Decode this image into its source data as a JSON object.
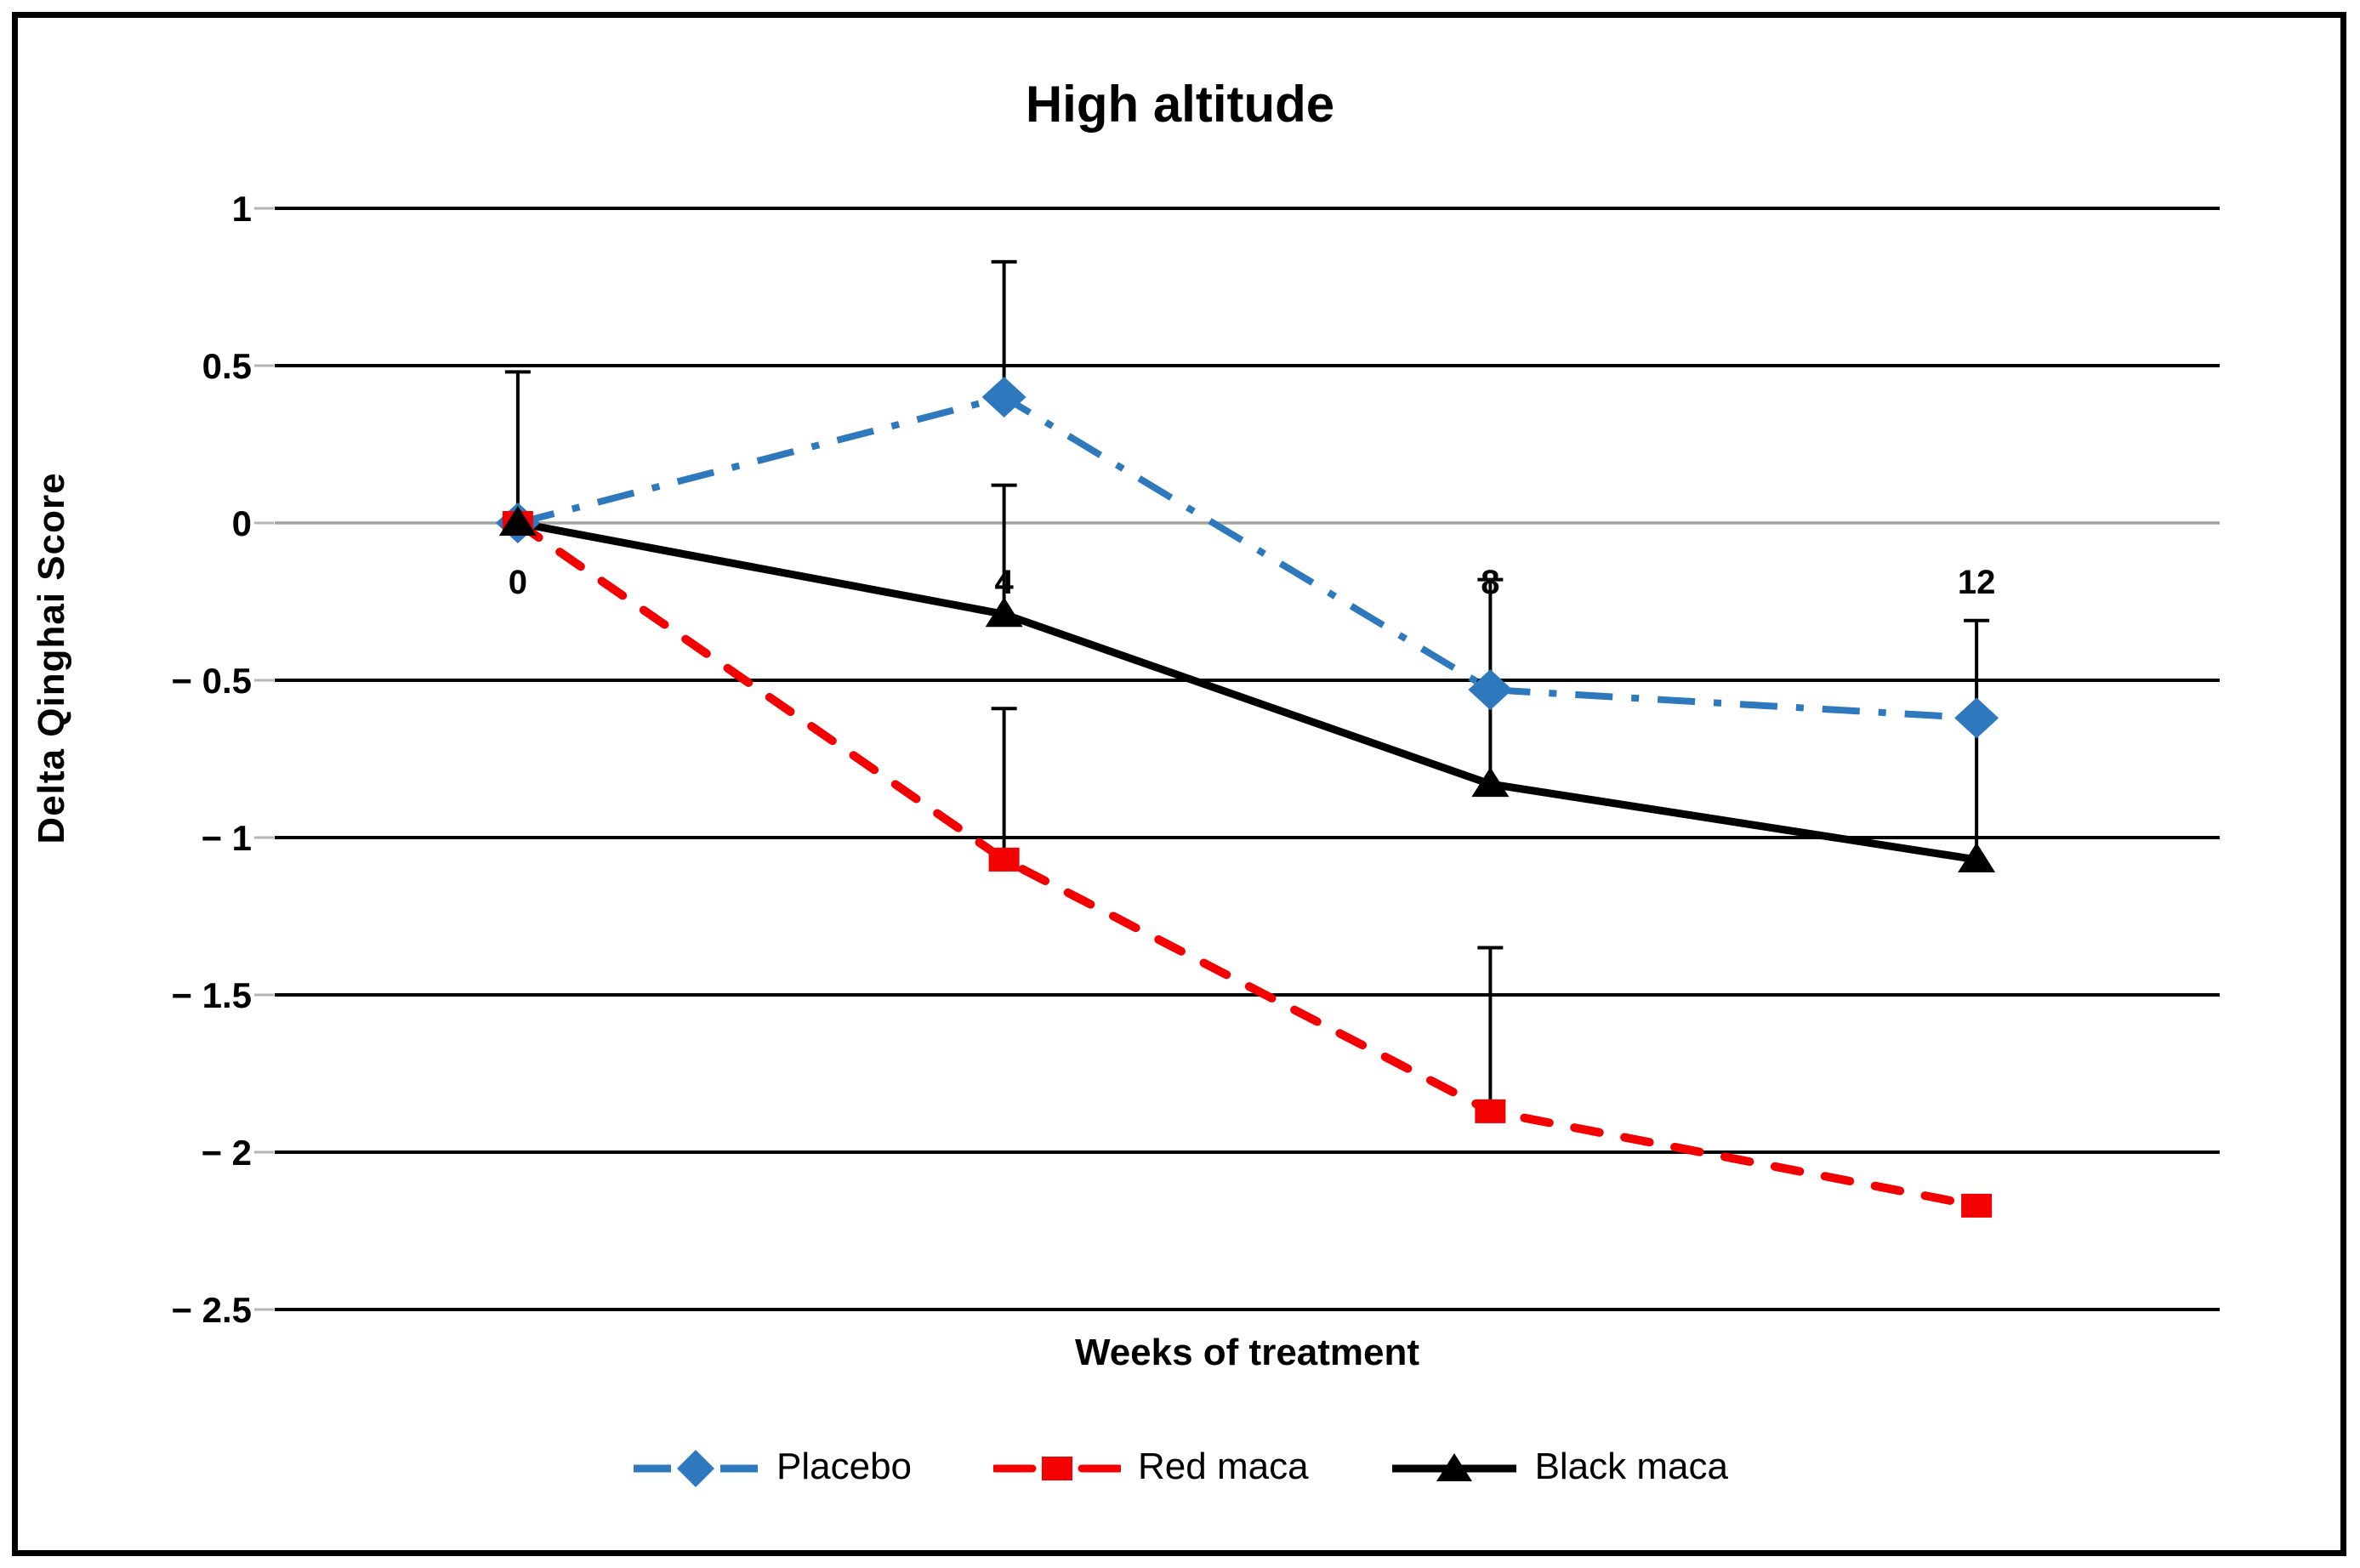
{
  "chart_data": {
    "type": "line",
    "title": "High altitude",
    "xlabel": "Weeks of treatment",
    "ylabel": "Delta Qinghai  Score",
    "x": [
      0,
      4,
      8,
      12
    ],
    "x_tick_labels": [
      "0",
      "4",
      "8",
      "12"
    ],
    "y_ticks": [
      1,
      0.5,
      0,
      -0.5,
      -1,
      -1.5,
      -2,
      -2.5
    ],
    "y_tick_labels": [
      "1",
      "0.5",
      "0",
      "− 0.5",
      "− 1",
      "− 1.5",
      "− 2",
      "− 2.5"
    ],
    "ylim": [
      -2.5,
      1
    ],
    "grid": "horizontal major gridlines black, zero line gray",
    "legend_position": "bottom",
    "error_bars": "upward only, black with top caps",
    "colors": {
      "gridline": "#000000",
      "zero_line": "#a3a3a3",
      "error_bar": "#000000",
      "placebo_blue": "#2e79bd",
      "red_maca_red": "#f40000",
      "black_maca_black": "#000000"
    },
    "series": [
      {
        "name": "Placebo",
        "color": "#2e79bd",
        "line": "dash-dot",
        "marker": "diamond",
        "values": [
          0,
          0.4,
          -0.53,
          -0.62
        ],
        "err_up": [
          0,
          0.43,
          0.35,
          0.31
        ]
      },
      {
        "name": "Red maca",
        "color": "#f40000",
        "line": "dashed",
        "marker": "square",
        "values": [
          0,
          -1.07,
          -1.87,
          -2.17
        ],
        "err_up": [
          0,
          0.48,
          0.52,
          0
        ]
      },
      {
        "name": "Black maca",
        "color": "#000000",
        "line": "solid",
        "marker": "triangle",
        "values": [
          0,
          -0.29,
          -0.83,
          -1.07
        ],
        "err_up": [
          0.48,
          0.41,
          0.3,
          0.45
        ]
      }
    ]
  }
}
